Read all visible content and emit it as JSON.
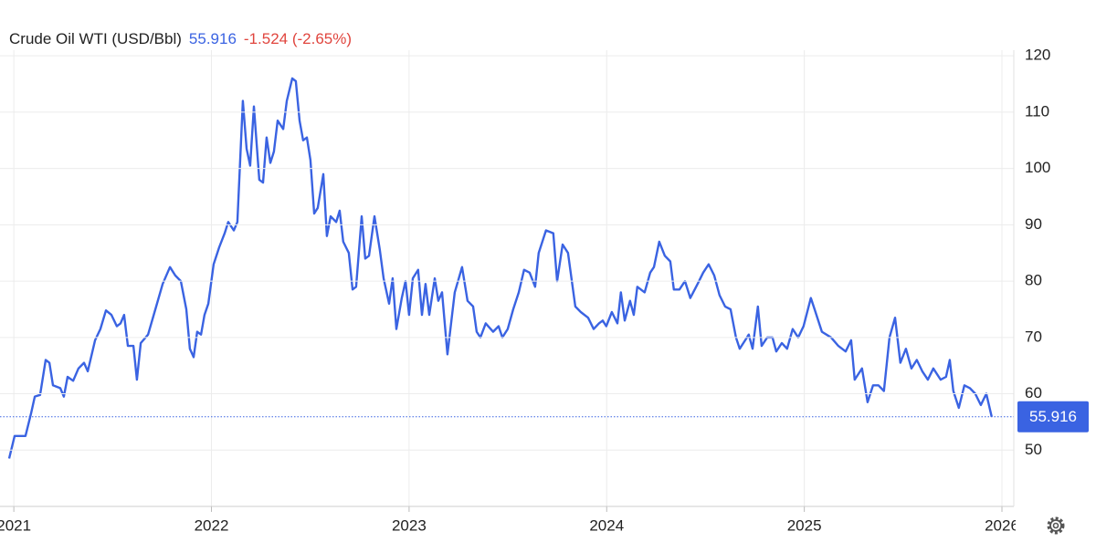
{
  "chart_data": {
    "type": "line",
    "title": "Crude Oil WTI (USD/Bbl)",
    "change": "-1.524 (-2.65%)",
    "x": [
      2020.976,
      2021.004,
      2021.059,
      2021.087,
      2021.106,
      2021.133,
      2021.161,
      2021.18,
      2021.198,
      2021.235,
      2021.253,
      2021.272,
      2021.3,
      2021.327,
      2021.355,
      2021.374,
      2021.411,
      2021.438,
      2021.466,
      2021.494,
      2021.521,
      2021.54,
      2021.558,
      2021.577,
      2021.605,
      2021.623,
      2021.642,
      2021.679,
      2021.716,
      2021.753,
      2021.79,
      2021.817,
      2021.845,
      2021.873,
      2021.891,
      2021.91,
      2021.928,
      2021.947,
      2021.965,
      2021.984,
      2022.011,
      2022.039,
      2022.067,
      2022.085,
      2022.113,
      2022.131,
      2022.159,
      2022.178,
      2022.196,
      2022.215,
      2022.242,
      2022.261,
      2022.279,
      2022.298,
      2022.316,
      2022.335,
      2022.363,
      2022.381,
      2022.409,
      2022.427,
      2022.446,
      2022.464,
      2022.483,
      2022.501,
      2022.52,
      2022.538,
      2022.566,
      2022.584,
      2022.603,
      2022.631,
      2022.649,
      2022.667,
      2022.695,
      2022.714,
      2022.732,
      2022.76,
      2022.778,
      2022.797,
      2022.825,
      2022.852,
      2022.871,
      2022.899,
      2022.917,
      2022.936,
      2022.963,
      2022.982,
      2023.0,
      2023.019,
      2023.046,
      2023.065,
      2023.083,
      2023.102,
      2023.13,
      2023.148,
      2023.167,
      2023.194,
      2023.231,
      2023.268,
      2023.296,
      2023.324,
      2023.342,
      2023.361,
      2023.388,
      2023.425,
      2023.453,
      2023.472,
      2023.499,
      2023.527,
      2023.555,
      2023.582,
      2023.61,
      2023.638,
      2023.656,
      2023.693,
      2023.73,
      2023.749,
      2023.777,
      2023.804,
      2023.841,
      2023.869,
      2023.906,
      2023.934,
      2023.961,
      2023.98,
      2023.998,
      2024.026,
      2024.054,
      2024.072,
      2024.091,
      2024.118,
      2024.137,
      2024.155,
      2024.192,
      2024.22,
      2024.239,
      2024.266,
      2024.294,
      2024.322,
      2024.34,
      2024.368,
      2024.396,
      2024.423,
      2024.46,
      2024.488,
      2024.516,
      2024.544,
      2024.571,
      2024.599,
      2024.627,
      2024.654,
      2024.673,
      2024.701,
      2024.719,
      2024.738,
      2024.765,
      2024.784,
      2024.812,
      2024.839,
      2024.858,
      2024.886,
      2024.913,
      2024.941,
      2024.969,
      2024.996,
      2025.033,
      2025.052,
      2025.089,
      2025.135,
      2025.172,
      2025.209,
      2025.237,
      2025.255,
      2025.292,
      2025.32,
      2025.348,
      2025.375,
      2025.403,
      2025.431,
      2025.459,
      2025.486,
      2025.514,
      2025.542,
      2025.569,
      2025.597,
      2025.625,
      2025.653,
      2025.69,
      2025.717,
      2025.736,
      2025.754,
      2025.782,
      2025.81,
      2025.838,
      2025.865,
      2025.893,
      2025.921,
      2025.948
    ],
    "series": [
      {
        "name": "Crude Oil WTI",
        "color": "#3a63e2",
        "values": [
          48.5,
          52.5,
          52.5,
          56.5,
          59.5,
          59.8,
          66.0,
          65.5,
          61.5,
          61.0,
          59.5,
          63.0,
          62.3,
          64.5,
          65.5,
          64.0,
          69.5,
          71.5,
          74.8,
          74.0,
          72.0,
          72.5,
          74.0,
          68.5,
          68.5,
          62.5,
          69.0,
          70.5,
          75.0,
          79.5,
          82.5,
          81.0,
          80.0,
          75.0,
          68.0,
          66.5,
          71.0,
          70.5,
          74.0,
          76.0,
          83.0,
          86.0,
          88.5,
          90.5,
          89.0,
          90.5,
          112.0,
          103.5,
          100.5,
          111.0,
          98.0,
          97.5,
          105.5,
          101.0,
          103.0,
          108.5,
          107.0,
          112.0,
          116.0,
          115.5,
          108.5,
          105.0,
          105.5,
          101.5,
          92.0,
          93.0,
          99.0,
          88.0,
          91.5,
          90.5,
          92.5,
          87.0,
          85.0,
          78.5,
          79.0,
          91.5,
          84.0,
          84.5,
          91.5,
          85.5,
          80.5,
          76.0,
          80.5,
          71.5,
          77.0,
          80.0,
          74.0,
          80.5,
          82.0,
          74.0,
          79.5,
          74.0,
          80.5,
          76.5,
          78.0,
          67.0,
          78.0,
          82.5,
          76.5,
          75.5,
          71.0,
          70.0,
          72.5,
          71.0,
          72.0,
          70.0,
          71.5,
          75.0,
          78.0,
          82.0,
          81.5,
          79.0,
          85.0,
          89.0,
          88.5,
          80.0,
          86.5,
          85.0,
          75.5,
          74.5,
          73.5,
          71.5,
          72.5,
          73.0,
          72.0,
          74.5,
          72.5,
          78.0,
          73.0,
          76.5,
          74.0,
          79.0,
          78.0,
          81.5,
          82.5,
          87.0,
          84.5,
          83.5,
          78.5,
          78.5,
          80.0,
          77.0,
          79.5,
          81.5,
          83.0,
          81.0,
          77.5,
          75.5,
          75.0,
          70.0,
          68.0,
          69.5,
          70.5,
          68.0,
          75.5,
          68.5,
          70.0,
          70.0,
          67.5,
          69.0,
          68.0,
          71.5,
          70.0,
          72.0,
          77.0,
          75.0,
          71.0,
          70.0,
          68.5,
          67.5,
          69.5,
          62.5,
          64.5,
          58.5,
          61.5,
          61.5,
          60.5,
          70.0,
          73.5,
          65.5,
          68.0,
          64.5,
          66.0,
          64.0,
          62.5,
          64.5,
          62.5,
          63.0,
          66.0,
          60.5,
          57.5,
          61.5,
          61.0,
          60.0,
          58.0,
          60.0,
          55.916
        ]
      }
    ],
    "xlim": [
      2020.93,
      2026.06
    ],
    "xticks": [
      2021,
      2022,
      2023,
      2024,
      2025,
      2026
    ],
    "ylim": [
      40,
      121
    ],
    "yticks": [
      50,
      60,
      70,
      80,
      90,
      100,
      110,
      120
    ],
    "change_color": "#e0453e",
    "grid": true
  }
}
